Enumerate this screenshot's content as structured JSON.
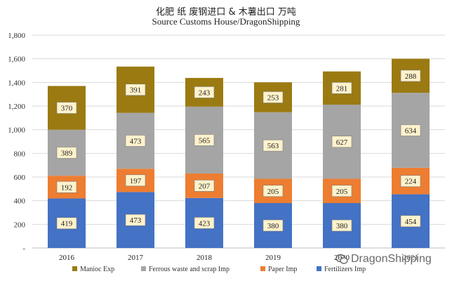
{
  "header": {
    "title": "化肥 纸 废钢进口 & 木薯出口 万吨",
    "subtitle": "Source Customs House/DragonShipping"
  },
  "watermark": {
    "text": "DragonShipping",
    "icon": "wechat-icon"
  },
  "chart_data": {
    "type": "bar",
    "stacked": true,
    "categories": [
      "2016",
      "2017",
      "2018",
      "2019",
      "2020",
      "2021"
    ],
    "series": [
      {
        "name": "Fertilizers Imp",
        "color": "#4472c4",
        "values": [
          419,
          473,
          423,
          380,
          380,
          454
        ]
      },
      {
        "name": "Paper Imp",
        "color": "#ed7d31",
        "values": [
          192,
          197,
          207,
          205,
          205,
          224
        ]
      },
      {
        "name": "Ferrous waste and scrap Imp",
        "color": "#a5a5a5",
        "values": [
          389,
          473,
          565,
          563,
          627,
          634
        ]
      },
      {
        "name": "Manioc Exp",
        "color": "#9b7a12",
        "values": [
          370,
          391,
          243,
          253,
          281,
          288
        ]
      }
    ],
    "legend_order": [
      "Manioc Exp",
      "Ferrous waste and scrap Imp",
      "Paper Imp",
      "Fertilizers Imp"
    ],
    "ylim": [
      0,
      1800
    ],
    "yticks": [
      "-",
      "200",
      "400",
      "600",
      "800",
      "1,000",
      "1,200",
      "1,400",
      "1,600",
      "1,800"
    ],
    "ytick_values": [
      0,
      200,
      400,
      600,
      800,
      1000,
      1200,
      1400,
      1600,
      1800
    ],
    "grid": true,
    "legend_position": "bottom",
    "data_labels": true,
    "label_box_color": "#fff2cc"
  }
}
